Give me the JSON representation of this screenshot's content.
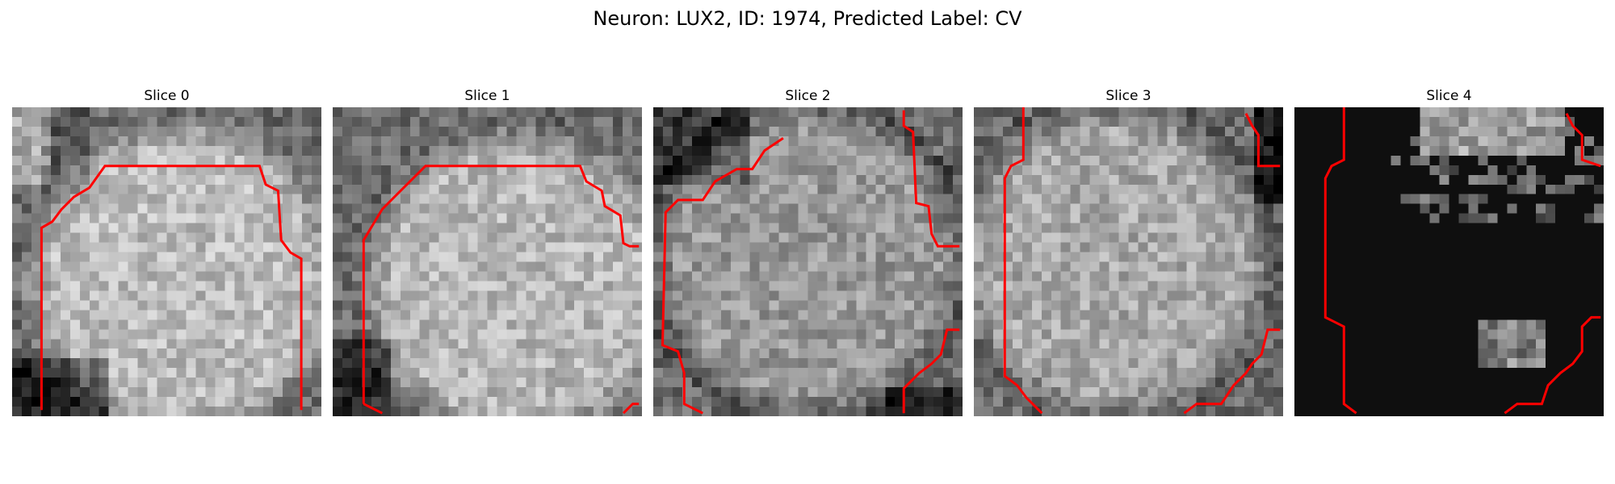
{
  "figure": {
    "title": "Neuron: LUX2, ID: 1974, Predicted Label: CV",
    "contour_color": "#ff0000"
  },
  "slices": [
    {
      "title": "Slice 0"
    },
    {
      "title": "Slice 1"
    },
    {
      "title": "Slice 2"
    },
    {
      "title": "Slice 3"
    },
    {
      "title": "Slice 4"
    }
  ]
}
